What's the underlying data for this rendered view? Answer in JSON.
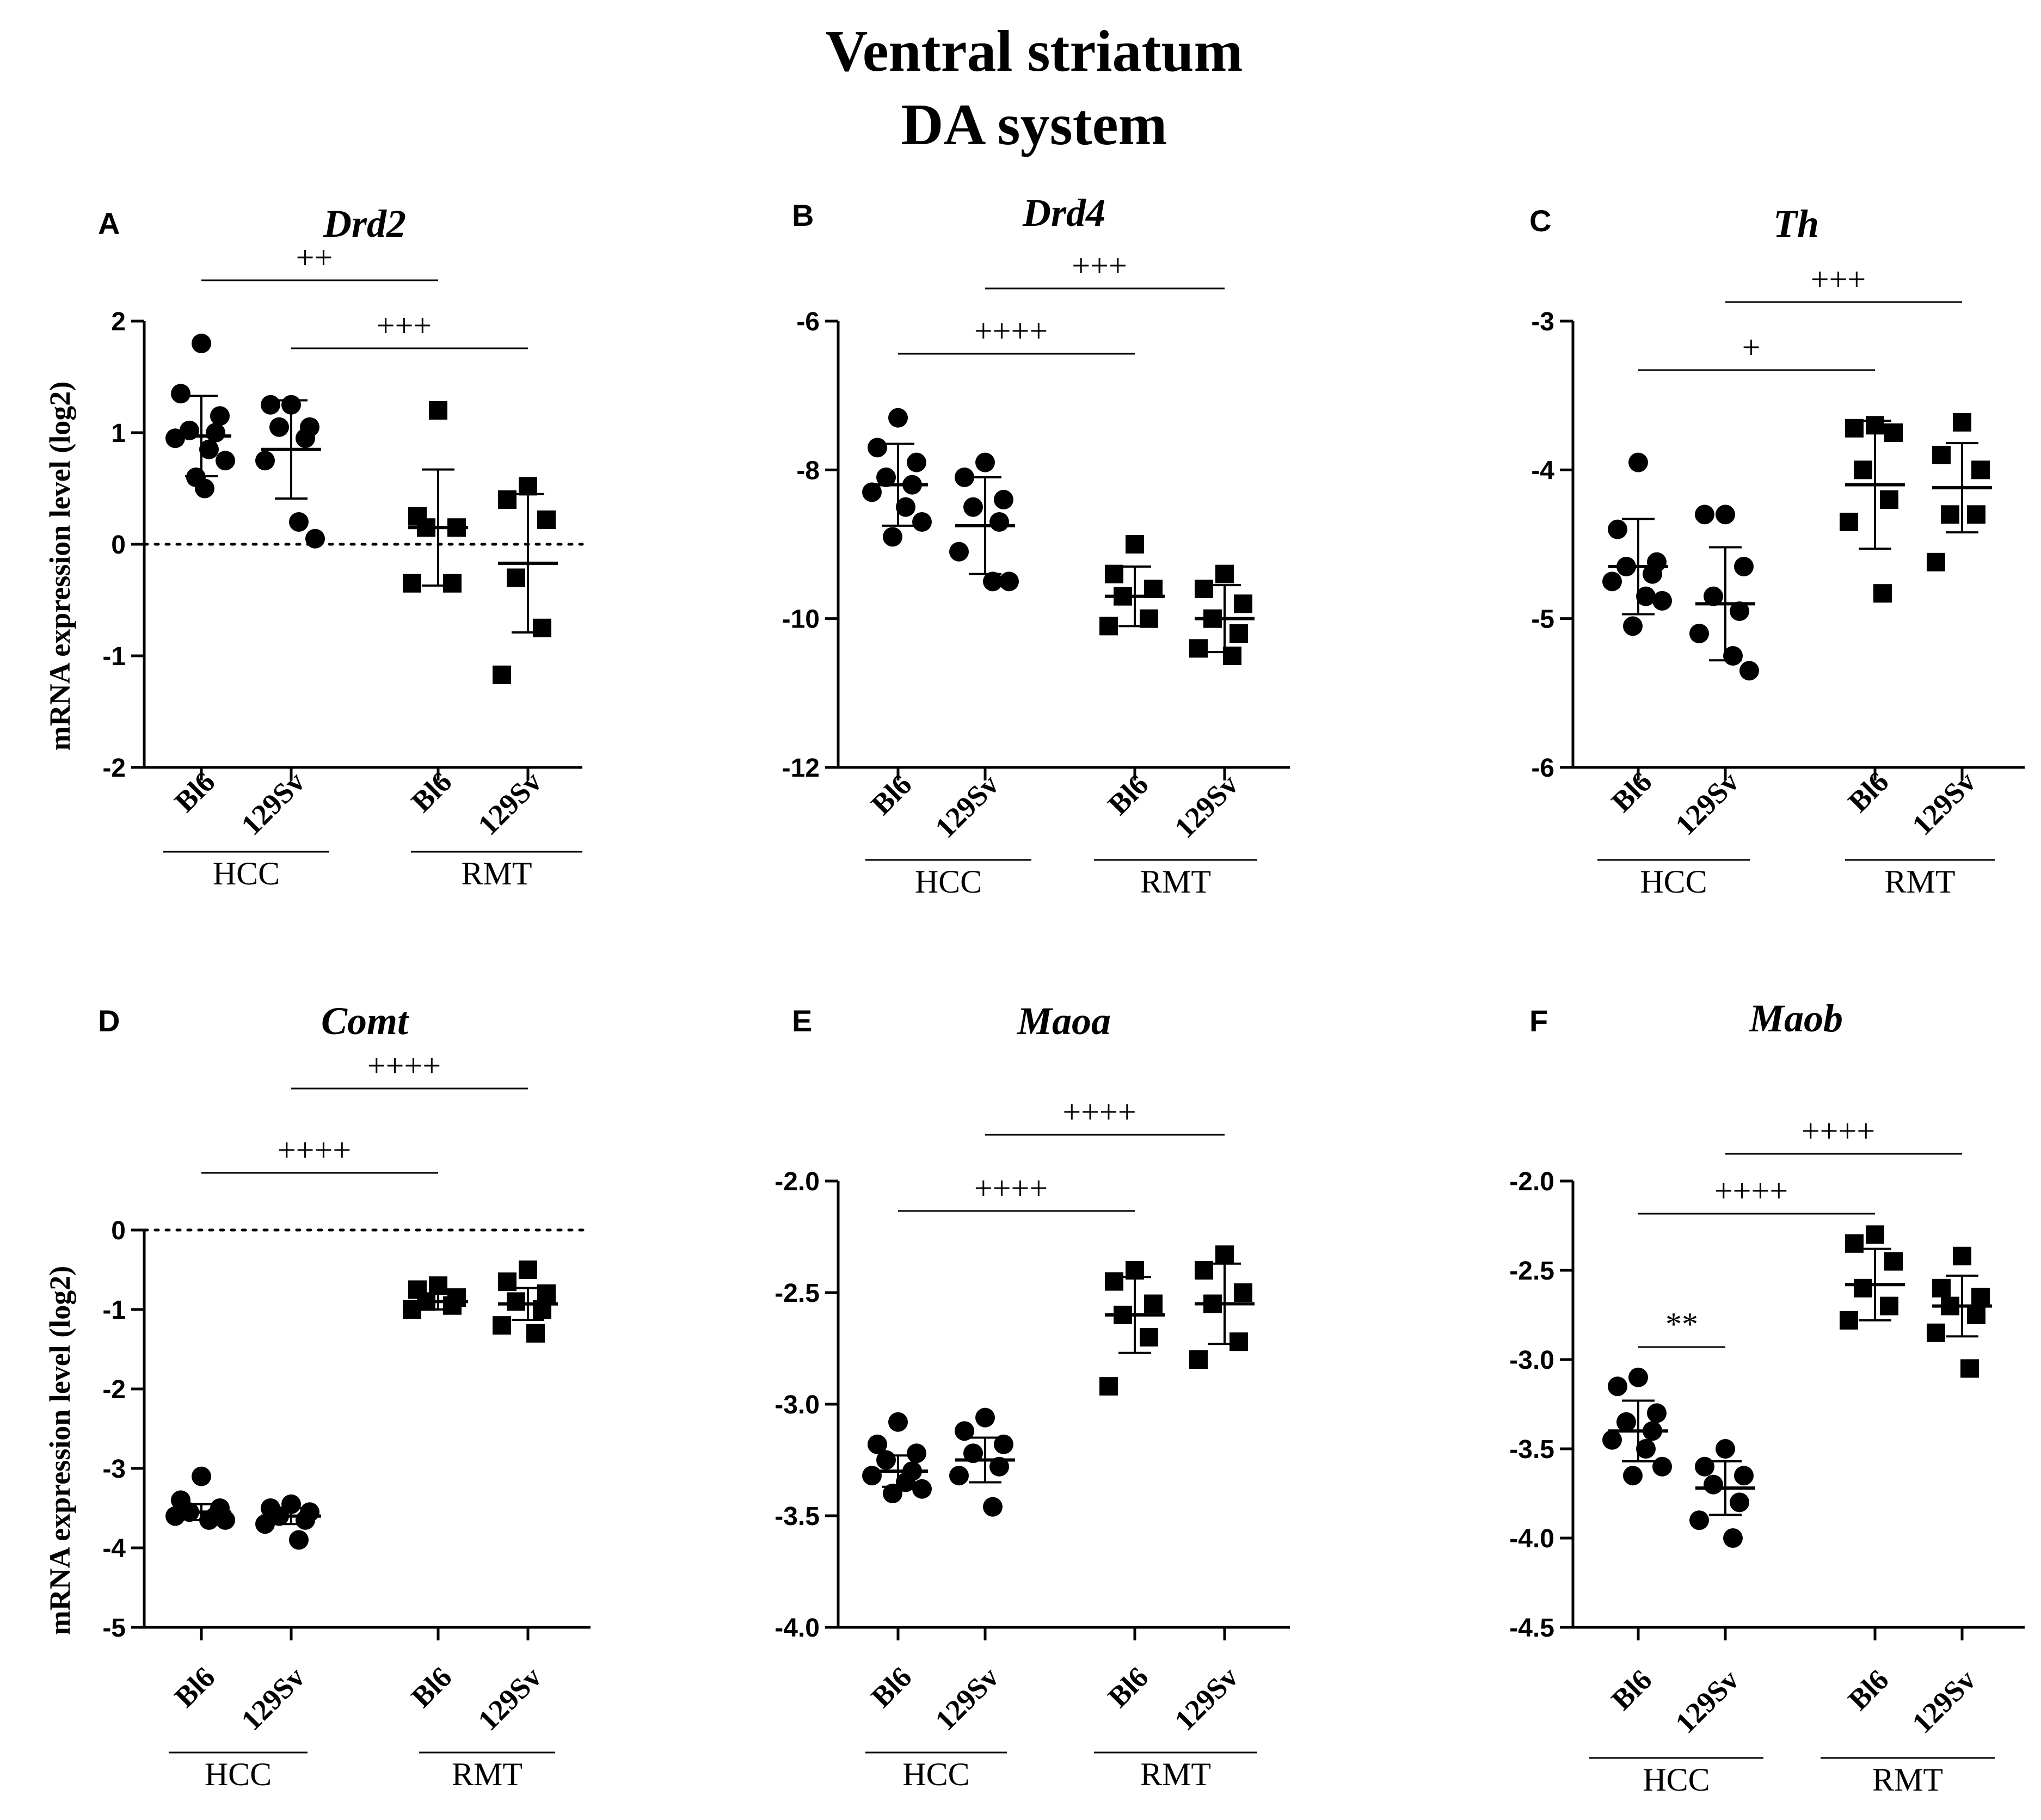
{
  "figure": {
    "title_line1": "Ventral striatum",
    "title_line2": "DA system",
    "group_labels": [
      "HCC",
      "RMT"
    ],
    "category_labels": [
      "Bl6",
      "129Sv",
      "Bl6",
      "129Sv"
    ],
    "ylabel": "mRNA expression level (log2)"
  },
  "chart_data": [
    {
      "panel": "A",
      "title": "Drd2",
      "type": "scatter",
      "ylabel": "mRNA expression level (log2)",
      "ylim": [
        -2,
        2
      ],
      "yticks": [
        2,
        1,
        0,
        -1,
        -2
      ],
      "ytick_labels": [
        "2",
        "1",
        "0",
        "-1",
        "-2"
      ],
      "zero_line": true,
      "categories": [
        "Bl6",
        "129Sv",
        "Bl6",
        "129Sv"
      ],
      "groups": [
        "HCC",
        "RMT"
      ],
      "series": [
        {
          "name": "HCC Bl6",
          "marker": "circle",
          "mean": 0.97,
          "sd": 0.36,
          "points": [
            1.8,
            1.35,
            1.15,
            1.02,
            1.0,
            0.95,
            0.85,
            0.75,
            0.6,
            0.5
          ]
        },
        {
          "name": "HCC 129Sv",
          "marker": "circle",
          "mean": 0.85,
          "sd": 0.44,
          "points": [
            1.25,
            1.25,
            1.05,
            1.05,
            0.95,
            0.75,
            0.2,
            0.05
          ]
        },
        {
          "name": "RMT Bl6",
          "marker": "square",
          "mean": 0.15,
          "sd": 0.52,
          "points": [
            1.2,
            0.25,
            0.15,
            0.15,
            -0.35,
            -0.35
          ]
        },
        {
          "name": "RMT 129Sv",
          "marker": "square",
          "mean": -0.17,
          "sd": 0.62,
          "points": [
            0.52,
            0.4,
            0.22,
            -0.3,
            -0.75,
            -1.17
          ]
        }
      ],
      "comparisons": [
        {
          "from": 0,
          "to": 2,
          "label": "++",
          "y": 2.1
        },
        {
          "from": 1,
          "to": 3,
          "label": "+++",
          "y": 1.5
        }
      ]
    },
    {
      "panel": "B",
      "title": "Drd4",
      "type": "scatter",
      "ylabel": "",
      "ylim": [
        -12,
        -6
      ],
      "yticks": [
        -6,
        -8,
        -10,
        -12
      ],
      "ytick_labels": [
        "-6",
        "-8",
        "-10",
        "-12"
      ],
      "zero_line": false,
      "categories": [
        "Bl6",
        "129Sv",
        "Bl6",
        "129Sv"
      ],
      "groups": [
        "HCC",
        "RMT"
      ],
      "series": [
        {
          "name": "HCC Bl6",
          "marker": "circle",
          "mean": -8.2,
          "sd": 0.55,
          "points": [
            -7.3,
            -7.7,
            -7.9,
            -8.1,
            -8.2,
            -8.3,
            -8.5,
            -8.7,
            -8.9
          ]
        },
        {
          "name": "HCC 129Sv",
          "marker": "circle",
          "mean": -8.75,
          "sd": 0.65,
          "points": [
            -7.9,
            -8.1,
            -8.4,
            -8.5,
            -8.7,
            -9.1,
            -9.5,
            -9.5
          ]
        },
        {
          "name": "RMT Bl6",
          "marker": "square",
          "mean": -9.7,
          "sd": 0.4,
          "points": [
            -9.0,
            -9.4,
            -9.6,
            -9.7,
            -10.0,
            -10.1
          ]
        },
        {
          "name": "RMT 129Sv",
          "marker": "square",
          "mean": -10.0,
          "sd": 0.45,
          "points": [
            -9.4,
            -9.6,
            -9.8,
            -10.0,
            -10.2,
            -10.4,
            -10.5
          ]
        }
      ],
      "comparisons": [
        {
          "from": 1,
          "to": 3,
          "label": "+++",
          "y": -6.0
        },
        {
          "from": 0,
          "to": 2,
          "label": "++++",
          "y": -6.9
        }
      ]
    },
    {
      "panel": "C",
      "title": "Th",
      "type": "scatter",
      "ylabel": "",
      "ylim": [
        -6,
        -3
      ],
      "yticks": [
        -3,
        -4,
        -5,
        -6
      ],
      "ytick_labels": [
        "-3",
        "-4",
        "-5",
        "-6"
      ],
      "zero_line": false,
      "categories": [
        "Bl6",
        "129Sv",
        "Bl6",
        "129Sv"
      ],
      "groups": [
        "HCC",
        "RMT"
      ],
      "series": [
        {
          "name": "HCC Bl6",
          "marker": "circle",
          "mean": -4.65,
          "sd": 0.32,
          "points": [
            -3.95,
            -4.4,
            -4.62,
            -4.65,
            -4.7,
            -4.75,
            -4.85,
            -4.88,
            -5.05
          ]
        },
        {
          "name": "HCC 129Sv",
          "marker": "circle",
          "mean": -4.9,
          "sd": 0.38,
          "points": [
            -4.3,
            -4.3,
            -4.65,
            -4.85,
            -4.95,
            -5.1,
            -5.25,
            -5.35
          ]
        },
        {
          "name": "RMT Bl6",
          "marker": "square",
          "mean": -4.1,
          "sd": 0.43,
          "points": [
            -3.7,
            -3.72,
            -3.75,
            -4.0,
            -4.2,
            -4.35,
            -4.83
          ]
        },
        {
          "name": "RMT 129Sv",
          "marker": "square",
          "mean": -4.12,
          "sd": 0.3,
          "points": [
            -3.68,
            -3.9,
            -4.0,
            -4.3,
            -4.3,
            -4.62
          ]
        }
      ],
      "comparisons": [
        {
          "from": 1,
          "to": 3,
          "label": "+++",
          "y": -3.08
        },
        {
          "from": 0,
          "to": 2,
          "label": "+",
          "y": -3.53
        }
      ]
    },
    {
      "panel": "D",
      "title": "Comt",
      "type": "scatter",
      "ylabel": "mRNA expression level (log2)",
      "ylim": [
        -5,
        0
      ],
      "yticks": [
        0,
        -1,
        -2,
        -3,
        -4,
        -5
      ],
      "ytick_labels": [
        "0",
        "-1",
        "-2",
        "-3",
        "-4",
        "-5"
      ],
      "zero_line": true,
      "categories": [
        "Bl6",
        "129Sv",
        "Bl6",
        "129Sv"
      ],
      "groups": [
        "HCC",
        "RMT"
      ],
      "series": [
        {
          "name": "HCC Bl6",
          "marker": "circle",
          "mean": -3.55,
          "sd": 0.1,
          "points": [
            -3.1,
            -3.4,
            -3.5,
            -3.55,
            -3.6,
            -3.6,
            -3.65,
            -3.65
          ]
        },
        {
          "name": "HCC 129Sv",
          "marker": "circle",
          "mean": -3.6,
          "sd": 0.1,
          "points": [
            -3.45,
            -3.5,
            -3.55,
            -3.6,
            -3.65,
            -3.7,
            -3.9
          ]
        },
        {
          "name": "RMT Bl6",
          "marker": "square",
          "mean": -0.9,
          "sd": 0.1,
          "points": [
            -0.7,
            -0.75,
            -0.85,
            -0.9,
            -0.95,
            -1.0
          ]
        },
        {
          "name": "RMT 129Sv",
          "marker": "square",
          "mean": -0.93,
          "sd": 0.2,
          "points": [
            -0.5,
            -0.65,
            -0.8,
            -0.9,
            -1.0,
            -1.2,
            -1.3
          ]
        }
      ],
      "comparisons": [
        {
          "from": 1,
          "to": 3,
          "label": "++++",
          "y": 1.4
        },
        {
          "from": 0,
          "to": 2,
          "label": "++++",
          "y": 0.35
        }
      ]
    },
    {
      "panel": "E",
      "title": "Maoa",
      "type": "scatter",
      "ylabel": "",
      "ylim": [
        -4.0,
        -2.0
      ],
      "yticks": [
        -2.0,
        -2.5,
        -3.0,
        -3.5,
        -4.0
      ],
      "ytick_labels": [
        "-2.0",
        "-2.5",
        "-3.0",
        "-3.5",
        "-4.0"
      ],
      "zero_line": false,
      "categories": [
        "Bl6",
        "129Sv",
        "Bl6",
        "129Sv"
      ],
      "groups": [
        "HCC",
        "RMT"
      ],
      "series": [
        {
          "name": "HCC Bl6",
          "marker": "circle",
          "mean": -3.3,
          "sd": 0.07,
          "points": [
            -3.08,
            -3.18,
            -3.22,
            -3.25,
            -3.3,
            -3.32,
            -3.35,
            -3.38,
            -3.4
          ]
        },
        {
          "name": "HCC 129Sv",
          "marker": "circle",
          "mean": -3.25,
          "sd": 0.1,
          "points": [
            -3.06,
            -3.12,
            -3.18,
            -3.22,
            -3.28,
            -3.32,
            -3.46
          ]
        },
        {
          "name": "RMT Bl6",
          "marker": "square",
          "mean": -2.6,
          "sd": 0.17,
          "points": [
            -2.4,
            -2.45,
            -2.55,
            -2.6,
            -2.7,
            -2.92
          ]
        },
        {
          "name": "RMT 129Sv",
          "marker": "square",
          "mean": -2.55,
          "sd": 0.18,
          "points": [
            -2.33,
            -2.4,
            -2.5,
            -2.55,
            -2.72,
            -2.8
          ]
        }
      ],
      "comparisons": [
        {
          "from": 1,
          "to": 3,
          "label": "++++",
          "y": -1.97
        },
        {
          "from": 0,
          "to": 2,
          "label": "++++",
          "y": -2.28
        }
      ]
    },
    {
      "panel": "F",
      "title": "Maob",
      "type": "scatter",
      "ylabel": "",
      "ylim": [
        -4.5,
        -2.0
      ],
      "yticks": [
        -2.0,
        -2.5,
        -3.0,
        -3.5,
        -4.0,
        -4.5
      ],
      "ytick_labels": [
        "-2.0",
        "-2.5",
        "-3.0",
        "-3.5",
        "-4.0",
        "-4.5"
      ],
      "zero_line": false,
      "categories": [
        "Bl6",
        "129Sv",
        "Bl6",
        "129Sv"
      ],
      "groups": [
        "HCC",
        "RMT"
      ],
      "series": [
        {
          "name": "HCC Bl6",
          "marker": "circle",
          "mean": -3.4,
          "sd": 0.17,
          "points": [
            -3.1,
            -3.15,
            -3.3,
            -3.35,
            -3.4,
            -3.45,
            -3.5,
            -3.6,
            -3.65
          ]
        },
        {
          "name": "HCC 129Sv",
          "marker": "circle",
          "mean": -3.72,
          "sd": 0.15,
          "points": [
            -3.5,
            -3.6,
            -3.65,
            -3.7,
            -3.8,
            -3.9,
            -4.0
          ]
        },
        {
          "name": "RMT Bl6",
          "marker": "square",
          "mean": -2.58,
          "sd": 0.2,
          "points": [
            -2.3,
            -2.35,
            -2.45,
            -2.6,
            -2.7,
            -2.78
          ]
        },
        {
          "name": "RMT 129Sv",
          "marker": "square",
          "mean": -2.7,
          "sd": 0.17,
          "points": [
            -2.42,
            -2.6,
            -2.65,
            -2.7,
            -2.75,
            -2.85,
            -3.05
          ]
        }
      ],
      "comparisons": [
        {
          "from": 1,
          "to": 3,
          "label": "++++",
          "y": -1.85
        },
        {
          "from": 0,
          "to": 2,
          "label": "++++",
          "y": -2.19
        },
        {
          "from": 0,
          "to": 1,
          "label": "**",
          "y": -2.97
        }
      ]
    }
  ]
}
